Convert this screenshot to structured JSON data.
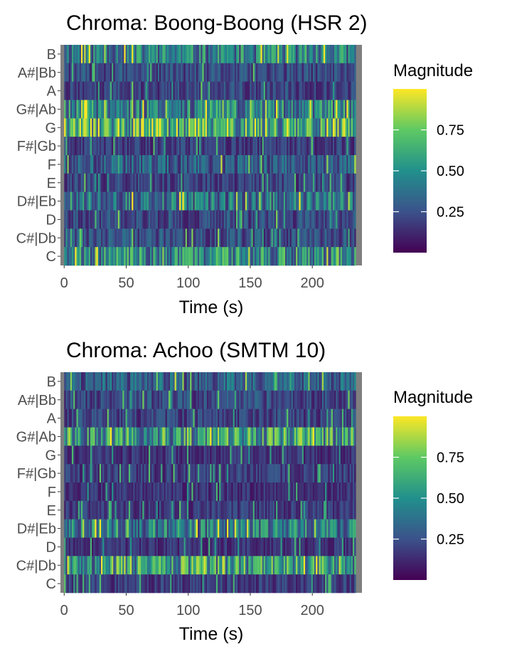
{
  "chart_data": [
    {
      "type": "heatmap",
      "title": "Chroma: Boong-Boong (HSR 2)",
      "xlabel": "Time (s)",
      "ylabel": "",
      "xlim": [
        -3,
        240
      ],
      "x_ticks": [
        0,
        50,
        100,
        150,
        200
      ],
      "duration_s": 235,
      "pitch_classes": [
        "B",
        "A#|Bb",
        "A",
        "G#|Ab",
        "G",
        "F#|Gb",
        "F",
        "E",
        "D#|Eb",
        "D",
        "C#|Db",
        "C"
      ],
      "mean_magnitude": [
        0.42,
        0.22,
        0.2,
        0.45,
        0.62,
        0.18,
        0.3,
        0.2,
        0.38,
        0.22,
        0.24,
        0.48
      ],
      "legend": {
        "title": "Magnitude",
        "ticks": [
          0.25,
          0.5,
          0.75
        ],
        "tick_labels": [
          "0.25",
          "0.50",
          "0.75"
        ],
        "range": [
          0,
          1
        ],
        "position": "right"
      },
      "colormap": "viridis",
      "panel_background": "#7f7f7f"
    },
    {
      "type": "heatmap",
      "title": "Chroma: Achoo (SMTM 10)",
      "xlabel": "Time (s)",
      "ylabel": "",
      "xlim": [
        -3,
        240
      ],
      "x_ticks": [
        0,
        50,
        100,
        150,
        200
      ],
      "duration_s": 235,
      "pitch_classes": [
        "B",
        "A#|Bb",
        "A",
        "G#|Ab",
        "G",
        "F#|Gb",
        "F",
        "E",
        "D#|Eb",
        "D",
        "C#|Db",
        "C"
      ],
      "mean_magnitude": [
        0.3,
        0.22,
        0.2,
        0.55,
        0.15,
        0.18,
        0.15,
        0.18,
        0.42,
        0.15,
        0.55,
        0.18
      ],
      "legend": {
        "title": "Magnitude",
        "ticks": [
          0.25,
          0.5,
          0.75
        ],
        "tick_labels": [
          "0.25",
          "0.50",
          "0.75"
        ],
        "range": [
          0,
          1
        ],
        "position": "right"
      },
      "colormap": "viridis",
      "panel_background": "#7f7f7f"
    }
  ]
}
